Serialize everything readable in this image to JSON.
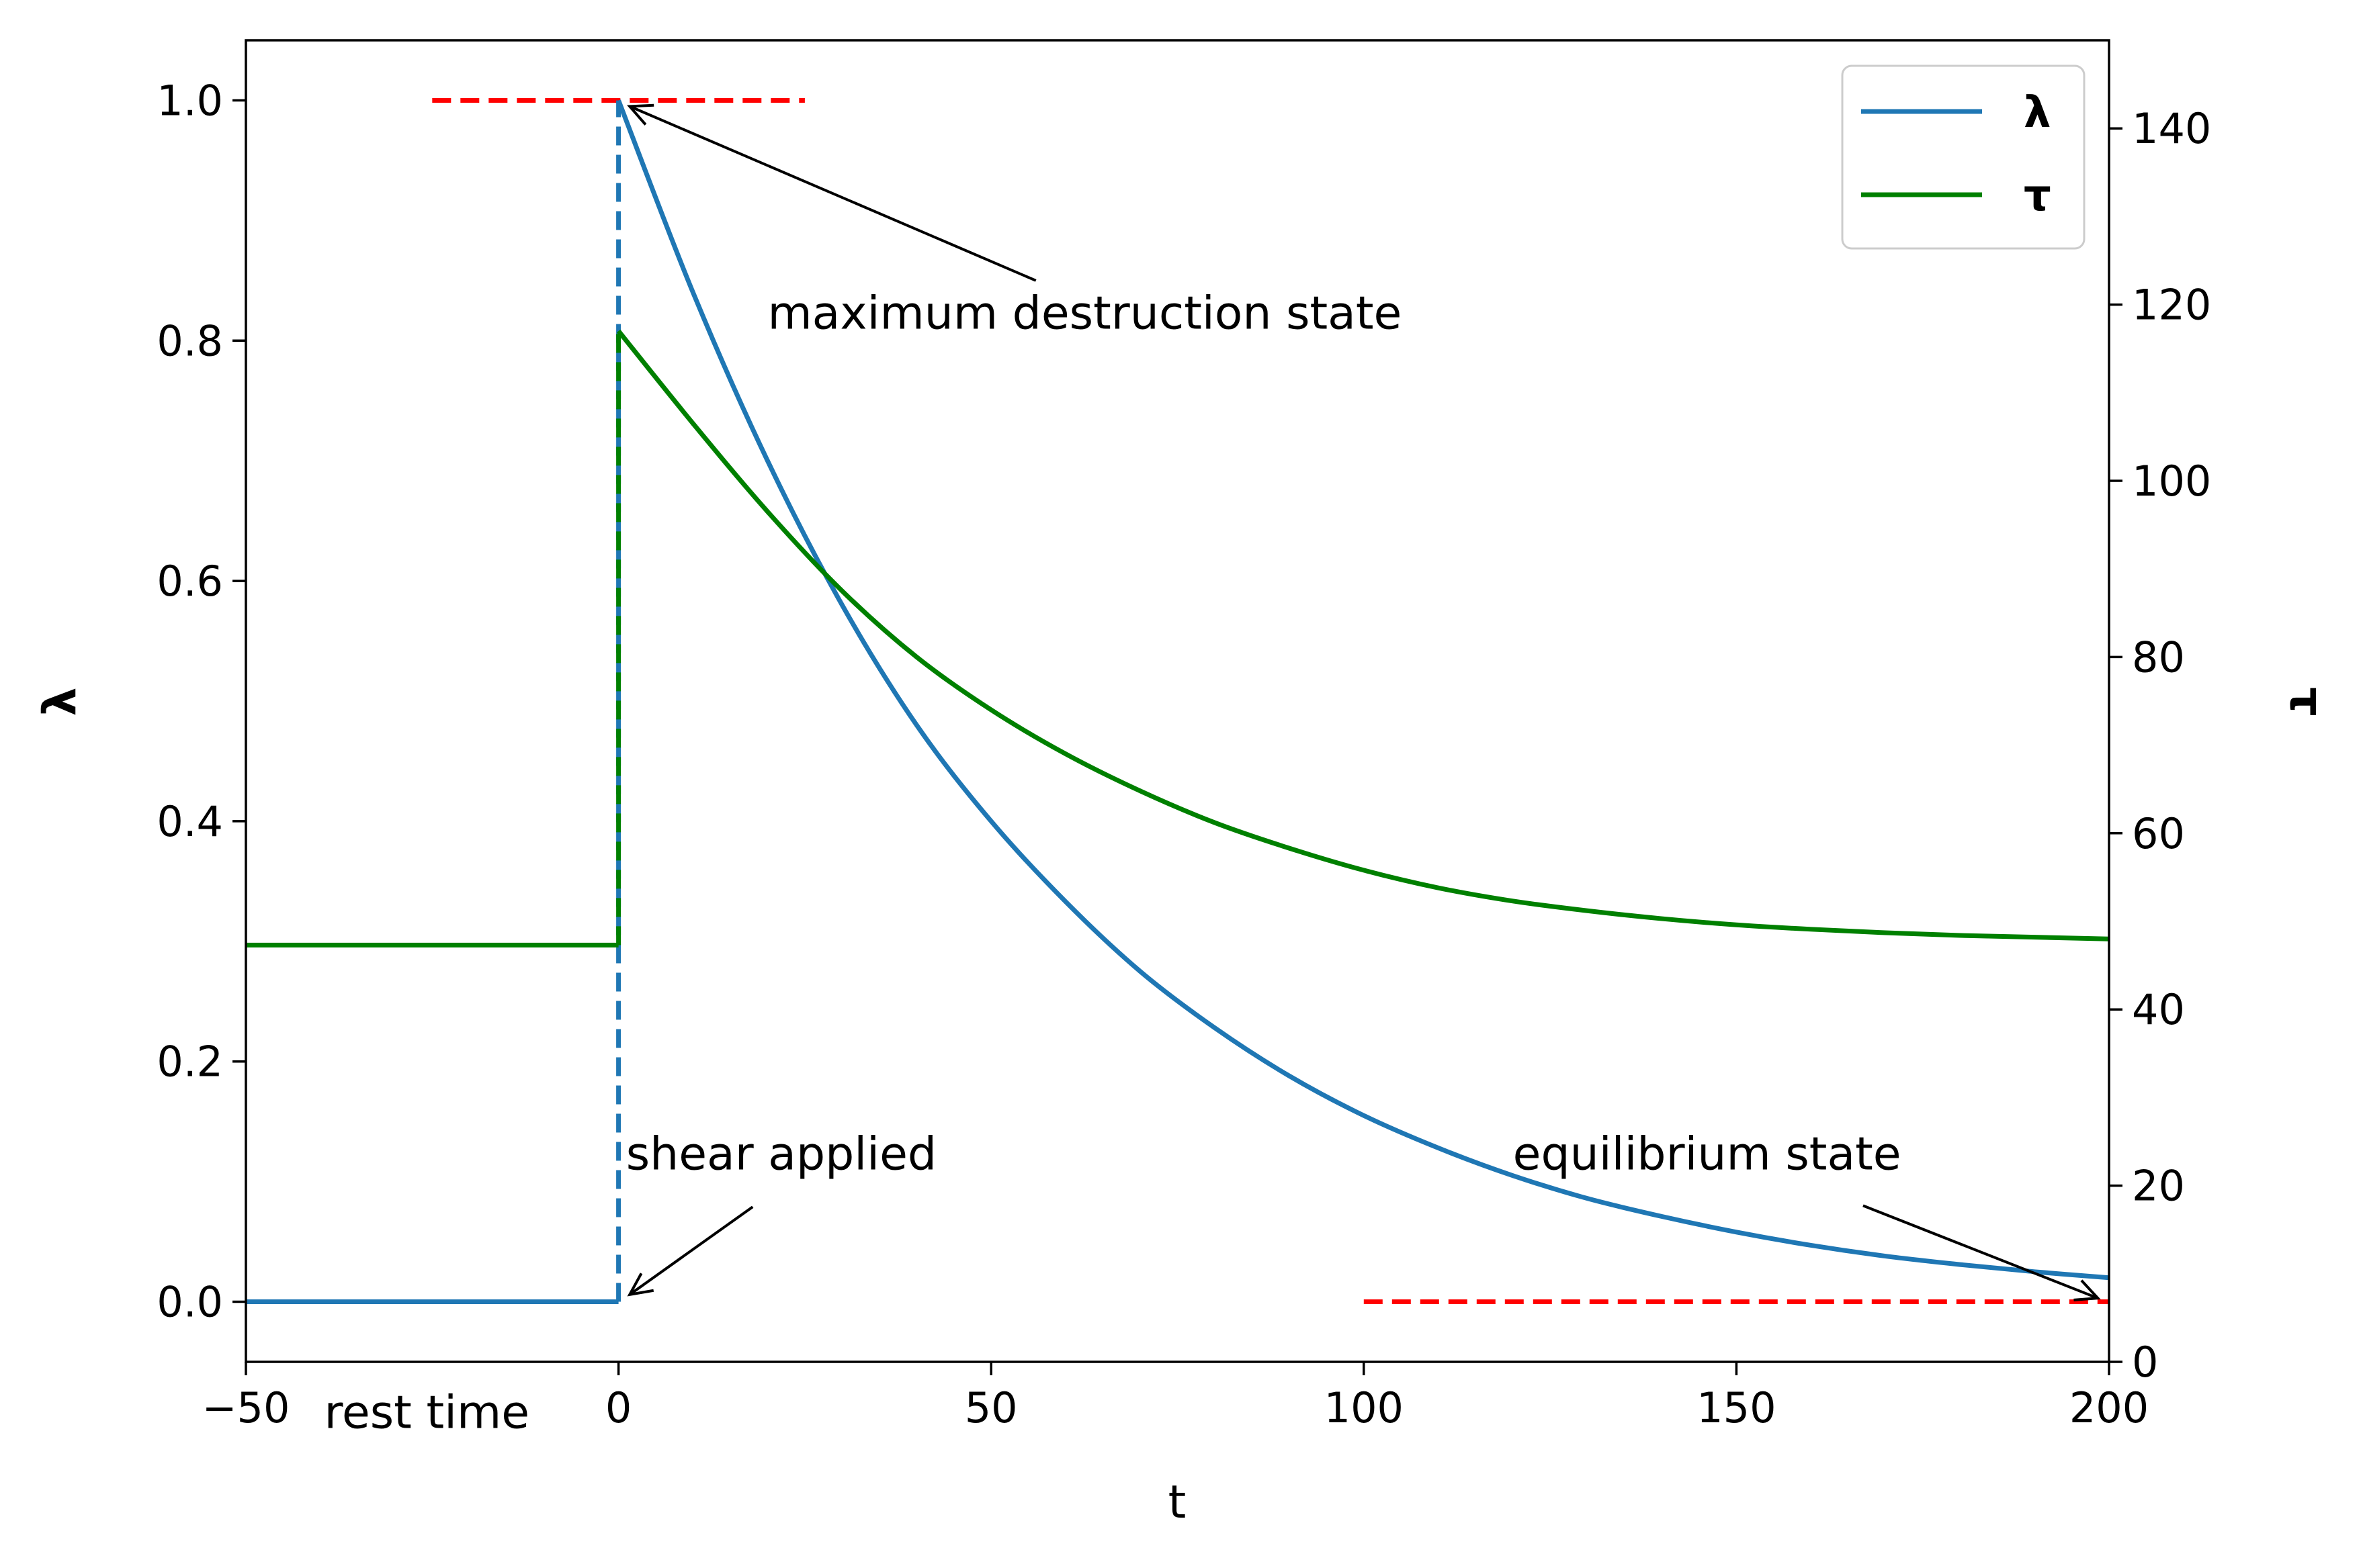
{
  "chart_data": {
    "type": "line",
    "xlabel": "t",
    "ylabel_left": "λ",
    "ylabel_right": "τ",
    "xlim": [
      -50,
      200
    ],
    "ylim_left": [
      -0.05,
      1.05
    ],
    "ylim_right": [
      0,
      150
    ],
    "x_ticks": [
      -50,
      0,
      50,
      100,
      150,
      200
    ],
    "x_tick_labels": [
      "−50",
      "0",
      "50",
      "100",
      "150",
      "200"
    ],
    "y_left_ticks": [
      0.0,
      0.2,
      0.4,
      0.6,
      0.8,
      1.0
    ],
    "y_left_tick_labels": [
      "0.0",
      "0.2",
      "0.4",
      "0.6",
      "0.8",
      "1.0"
    ],
    "y_right_ticks": [
      0,
      20,
      40,
      60,
      80,
      100,
      120,
      140
    ],
    "y_right_tick_labels": [
      "0",
      "20",
      "40",
      "60",
      "80",
      "100",
      "120",
      "140"
    ],
    "grid": false,
    "legend_position": "top-right",
    "series": [
      {
        "name": "λ",
        "axis": "left",
        "color": "#1f77b4",
        "x": [
          -50,
          -25,
          0,
          0,
          10,
          20,
          30,
          40,
          50,
          60,
          70,
          80,
          90,
          100,
          110,
          120,
          130,
          140,
          150,
          160,
          170,
          180,
          190,
          200
        ],
        "y": [
          0,
          0,
          0,
          1.0,
          0.84,
          0.7,
          0.58,
          0.48,
          0.4,
          0.333,
          0.275,
          0.228,
          0.188,
          0.155,
          0.128,
          0.105,
          0.086,
          0.071,
          0.058,
          0.047,
          0.038,
          0.031,
          0.025,
          0.02
        ]
      },
      {
        "name": "τ",
        "axis": "right",
        "color": "#008000",
        "x": [
          -50,
          -25,
          0,
          0,
          10,
          20,
          30,
          40,
          50,
          60,
          70,
          80,
          90,
          100,
          110,
          120,
          130,
          140,
          150,
          160,
          170,
          180,
          190,
          200
        ],
        "y": [
          47.3,
          47.3,
          47.3,
          117,
          106.5,
          96.5,
          87.5,
          80,
          74,
          69,
          64.8,
          61.2,
          58.3,
          55.8,
          53.8,
          52.3,
          51.2,
          50.3,
          49.6,
          49.1,
          48.7,
          48.4,
          48.2,
          48.0
        ]
      }
    ],
    "dashed_segments": [
      {
        "axis": "left",
        "color": "#ff0000",
        "x": [
          -25,
          25
        ],
        "y": [
          1.0,
          1.0
        ]
      },
      {
        "axis": "left",
        "color": "#ff0000",
        "x": [
          100,
          200
        ],
        "y": [
          0.0,
          0.0
        ]
      },
      {
        "axis": "left",
        "color": "#1f77b4",
        "x": [
          0,
          0
        ],
        "y": [
          0.0,
          1.0
        ]
      },
      {
        "axis": "right",
        "color": "#008000",
        "x": [
          0,
          0
        ],
        "y": [
          47.3,
          117
        ]
      }
    ],
    "annotations": [
      {
        "text": "maximum destruction state",
        "text_x": 20,
        "text_y": 0.81,
        "arrow_to_x": 1.5,
        "arrow_to_y": 0.995
      },
      {
        "text": "shear applied",
        "text_x": 1,
        "text_y": 0.11,
        "arrow_to_x": 1.5,
        "arrow_to_y": 0.006
      },
      {
        "text": "equilibrium state",
        "text_x": 120,
        "text_y": 0.11,
        "arrow_to_x": 198.5,
        "arrow_to_y": 0.003
      },
      {
        "text": "rest time",
        "text_x": -39.5,
        "text_y": -0.105
      }
    ]
  }
}
